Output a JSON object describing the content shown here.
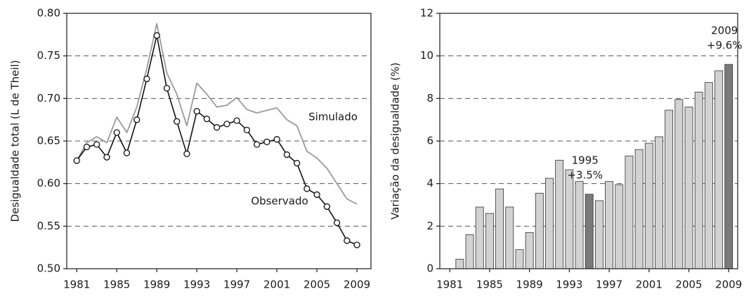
{
  "chart_data": [
    {
      "type": "line",
      "y_label": "Desigualdade total (L de Theil)",
      "x": [
        1981,
        1982,
        1983,
        1984,
        1985,
        1986,
        1987,
        1988,
        1989,
        1990,
        1991,
        1992,
        1993,
        1994,
        1995,
        1996,
        1997,
        1998,
        1999,
        2000,
        2001,
        2002,
        2003,
        2004,
        2005,
        2006,
        2007,
        2008,
        2009
      ],
      "series": [
        {
          "name": "Simulado",
          "color": "#9a9a9a",
          "markers": false,
          "values": [
            0.627,
            0.648,
            0.655,
            0.648,
            0.678,
            0.66,
            0.69,
            0.735,
            0.788,
            0.73,
            0.705,
            0.668,
            0.718,
            0.705,
            0.69,
            0.692,
            0.701,
            0.687,
            0.683,
            0.686,
            0.689,
            0.675,
            0.668,
            0.638,
            0.63,
            0.618,
            0.6,
            0.582,
            0.576
          ]
        },
        {
          "name": "Observado",
          "color": "#111111",
          "markers": true,
          "values": [
            0.627,
            0.643,
            0.646,
            0.631,
            0.66,
            0.636,
            0.675,
            0.723,
            0.774,
            0.712,
            0.673,
            0.635,
            0.685,
            0.676,
            0.666,
            0.67,
            0.674,
            0.663,
            0.646,
            0.649,
            0.652,
            0.634,
            0.624,
            0.594,
            0.587,
            0.573,
            0.554,
            0.533,
            0.528
          ]
        }
      ],
      "xlim": [
        1980,
        2010.4
      ],
      "xticks": [
        1981,
        1985,
        1989,
        1993,
        1997,
        2001,
        2005,
        2009
      ],
      "ylim": [
        0.5,
        0.8
      ],
      "yticks": [
        {
          "value": 0.5,
          "label": "0.50"
        },
        {
          "value": 0.55,
          "label": "0.55"
        },
        {
          "value": 0.6,
          "label": "0.60"
        },
        {
          "value": 0.65,
          "label": "0.65"
        },
        {
          "value": 0.7,
          "label": "0.70"
        },
        {
          "value": 0.75,
          "label": "0.75"
        },
        {
          "value": 0.8,
          "label": "0.80"
        }
      ],
      "grid": true
    },
    {
      "type": "bar",
      "y_label": "Variação da desigualdade (%)",
      "x": [
        1982,
        1983,
        1984,
        1985,
        1986,
        1987,
        1988,
        1989,
        1990,
        1991,
        1992,
        1993,
        1994,
        1995,
        1996,
        1997,
        1998,
        1999,
        2000,
        2001,
        2002,
        2003,
        2004,
        2005,
        2006,
        2007,
        2008,
        2009
      ],
      "values": [
        0.45,
        1.6,
        2.9,
        2.6,
        3.75,
        2.9,
        0.9,
        1.7,
        3.55,
        4.25,
        5.1,
        4.65,
        4.1,
        3.5,
        3.2,
        4.1,
        3.95,
        5.3,
        5.6,
        5.9,
        6.2,
        7.45,
        7.95,
        7.6,
        8.3,
        8.75,
        9.3,
        9.6
      ],
      "colors": [
        "#d2d2d2",
        "#d2d2d2",
        "#d2d2d2",
        "#d2d2d2",
        "#d2d2d2",
        "#d2d2d2",
        "#d2d2d2",
        "#d2d2d2",
        "#d2d2d2",
        "#d2d2d2",
        "#d2d2d2",
        "#d2d2d2",
        "#d2d2d2",
        "#7a7a7a",
        "#d2d2d2",
        "#d2d2d2",
        "#d2d2d2",
        "#d2d2d2",
        "#d2d2d2",
        "#d2d2d2",
        "#d2d2d2",
        "#d2d2d2",
        "#d2d2d2",
        "#d2d2d2",
        "#d2d2d2",
        "#d2d2d2",
        "#d2d2d2",
        "#7a7a7a"
      ],
      "annotations": [
        {
          "x": 1995,
          "text": [
            "1995",
            "+3.5%"
          ]
        },
        {
          "x": 2009,
          "text": [
            "2009",
            "+9.6%"
          ]
        }
      ],
      "xlim": [
        1980,
        2009.9
      ],
      "xticks": [
        1981,
        1985,
        1989,
        1993,
        1997,
        2001,
        2005,
        2009
      ],
      "ylim": [
        0,
        12
      ],
      "yticks": [
        0,
        2,
        4,
        6,
        8,
        10,
        12
      ],
      "grid": true
    }
  ]
}
